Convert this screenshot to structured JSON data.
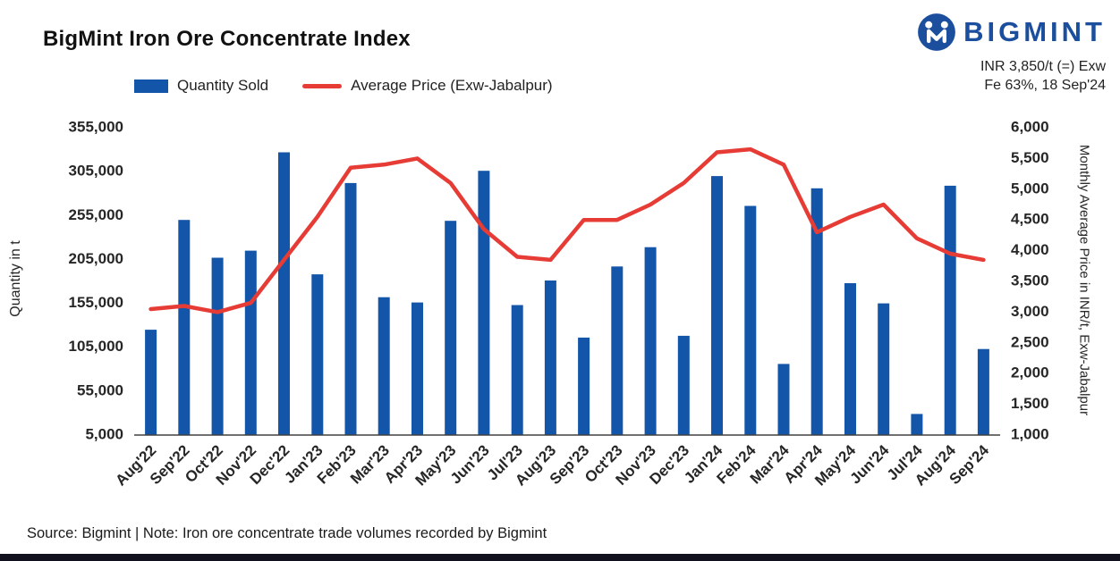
{
  "header": {
    "title": "BigMint Iron Ore Concentrate Index",
    "brand": "BIGMINT",
    "price_note_line1": "INR 3,850/t (=) Exw",
    "price_note_line2": "Fe 63%, 18 Sep'24"
  },
  "legend": {
    "bar_label": "Quantity Sold",
    "line_label": "Average Price (Exw-Jabalpur)"
  },
  "footer": {
    "source_note": "Source: Bigmint | Note: Iron ore concentrate trade volumes recorded by Bigmint"
  },
  "colors": {
    "bar": "#1355a9",
    "line": "#e63c35",
    "brand": "#1b4f9e",
    "axis_text": "#262626",
    "axis_line": "#404040"
  },
  "chart_data": {
    "type": "bar+line",
    "categories": [
      "Aug'22",
      "Sep'22",
      "Oct'22",
      "Nov'22",
      "Dec'22",
      "Jan'23",
      "Feb'23",
      "Mar'23",
      "Apr'23",
      "May'23",
      "Jun'23",
      "Jul'23",
      "Aug'23",
      "Sep'23",
      "Oct'23",
      "Nov'23",
      "Dec'23",
      "Jan'24",
      "Feb'24",
      "Mar'24",
      "Apr'24",
      "May'24",
      "Jun'24",
      "Jul'24",
      "Aug'24",
      "Sep'24"
    ],
    "series": [
      {
        "name": "Quantity Sold",
        "type": "bar",
        "axis": "left",
        "values": [
          125000,
          250000,
          207000,
          215000,
          327000,
          188000,
          292000,
          162000,
          156000,
          249000,
          306000,
          153000,
          181000,
          116000,
          197000,
          219000,
          118000,
          300000,
          266000,
          86000,
          286000,
          178000,
          155000,
          29000,
          289000,
          103000
        ]
      },
      {
        "name": "Average Price (Exw-Jabalpur)",
        "type": "line",
        "axis": "right",
        "values": [
          3050,
          3100,
          3000,
          3150,
          3850,
          4550,
          5350,
          5400,
          5500,
          5100,
          4350,
          3900,
          3850,
          4500,
          4500,
          4750,
          5100,
          5600,
          5650,
          5400,
          4300,
          4550,
          4750,
          4200,
          3950,
          3850
        ]
      }
    ],
    "left_axis": {
      "label": "Quantity in t",
      "min": 5000,
      "max": 355000,
      "ticks": [
        5000,
        55000,
        105000,
        155000,
        205000,
        255000,
        305000,
        355000
      ]
    },
    "right_axis": {
      "label": "Monthly Average Price in INR/t, Exw-Jabalpur",
      "min": 1000,
      "max": 6000,
      "ticks": [
        1000,
        1500,
        2000,
        2500,
        3000,
        3500,
        4000,
        4500,
        5000,
        5500,
        6000
      ]
    },
    "grid": false,
    "legend_position": "top"
  }
}
